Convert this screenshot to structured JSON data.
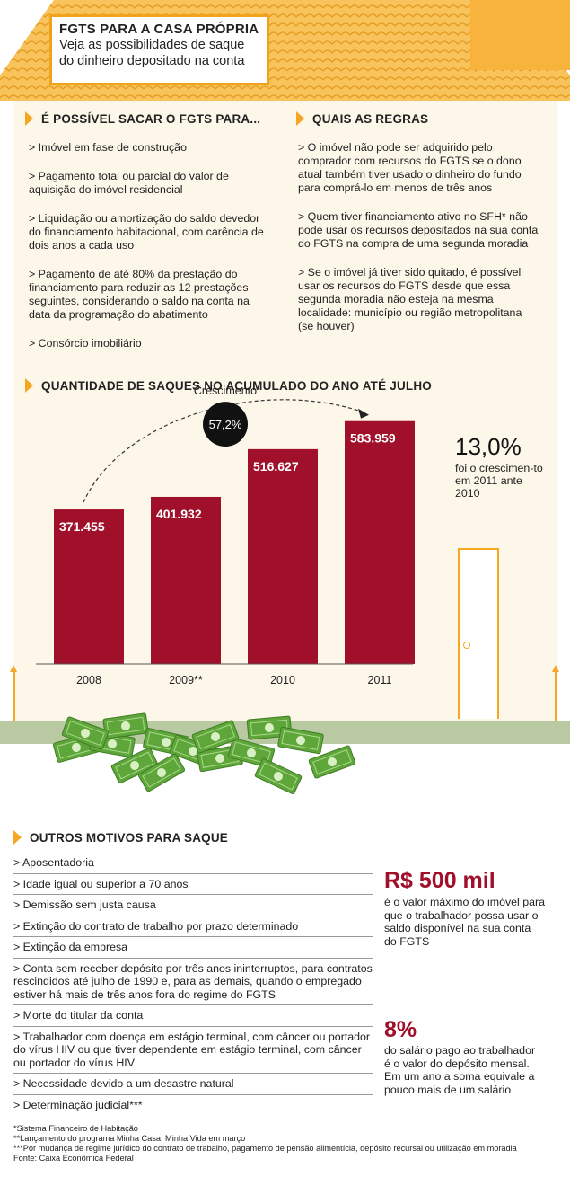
{
  "header": {
    "title": "FGTS PARA A CASA PRÓPRIA",
    "subtitle_line1": "Veja as possibilidades de saque",
    "subtitle_line2": "do dinheiro depositado na conta"
  },
  "sacar": {
    "heading": "É POSSÍVEL SACAR O FGTS PARA...",
    "items": [
      "> Imóvel em fase de construção",
      "> Pagamento total ou parcial do valor de aquisição do imóvel residencial",
      "> Liquidação ou amortização do saldo devedor do financiamento habitacional, com carência de dois anos a cada uso",
      "> Pagamento de até 80% da prestação do financiamento para reduzir as 12 prestações seguintes, considerando o saldo na conta na data da programação do abatimento",
      "> Consórcio imobiliário"
    ]
  },
  "regras": {
    "heading": "QUAIS AS REGRAS",
    "items": [
      "> O imóvel não pode ser adquirido pelo comprador com recursos do FGTS se o dono atual também tiver usado o dinheiro do fundo para comprá-lo em menos de três anos",
      "> Quem tiver financiamento ativo no SFH* não pode usar os recursos depositados na sua conta do FGTS na compra de uma segunda moradia",
      "> Se o imóvel já tiver sido quitado, é possível usar os recursos do FGTS desde que essa segunda moradia não esteja na mesma localidade: município ou região metropolitana (se houver)"
    ]
  },
  "chart_data": {
    "type": "bar",
    "title": "QUANTIDADE DE SAQUES NO ACUMULADO DO ANO ATÉ JULHO",
    "categories": [
      "2008",
      "2009**",
      "2010",
      "2011"
    ],
    "values": [
      371455,
      401932,
      516627,
      583959
    ],
    "value_labels": [
      "371.455",
      "401.932",
      "516.627",
      "583.959"
    ],
    "ylim": [
      0,
      700000
    ],
    "growth_label": "Crescimento",
    "growth_value": "57,2%",
    "bar_color": "#a0102a"
  },
  "highlight": {
    "value": "13,0%",
    "desc": "foi o crescimen-to em 2011 ante 2010"
  },
  "motivos": {
    "heading": "OUTROS MOTIVOS PARA SAQUE",
    "items": [
      "> Aposentadoria",
      "> Idade igual ou superior a 70 anos",
      "> Demissão sem justa causa",
      "> Extinção do contrato de trabalho por prazo determinado",
      "> Extinção da empresa",
      "> Conta sem receber depósito por três anos ininterruptos, para contratos rescindidos até julho de 1990 e, para as demais, quando o empregado estiver há mais de três anos fora do regime do FGTS",
      "> Morte do titular da conta",
      "> Trabalhador com doença em estágio terminal, com câncer ou portador do vírus HIV ou que tiver dependente em estágio terminal, com câncer ou portador do vírus HIV",
      "> Necessidade devido a um desastre natural",
      "> Determinação judicial***"
    ]
  },
  "stats": {
    "s1_value": "R$ 500 mil",
    "s1_desc": "é o valor máximo do imóvel para que o trabalhador possa usar o saldo disponível na sua conta do FGTS",
    "s2_value": "8%",
    "s2_desc": "do salário pago ao trabalhador é o valor do depósito mensal. Em um ano a soma equivale a pouco mais de um salário"
  },
  "notes": [
    "*Sistema Financeiro de Habitação",
    "**Lançamento do programa Minha Casa, Minha Vida em março",
    "***Por mudança de regime jurídico do contrato de trabalho, pagamento de pensão alimentícia, depósito recursal ou utilização em moradia",
    "Fonte: Caixa Econômica Federal"
  ],
  "colors": {
    "accent": "#f5a623",
    "roof": "#f7c35a",
    "wall": "#fdf7ea",
    "bar": "#a0102a",
    "ground": "#b9c9a1",
    "money": "#5fa63a"
  }
}
